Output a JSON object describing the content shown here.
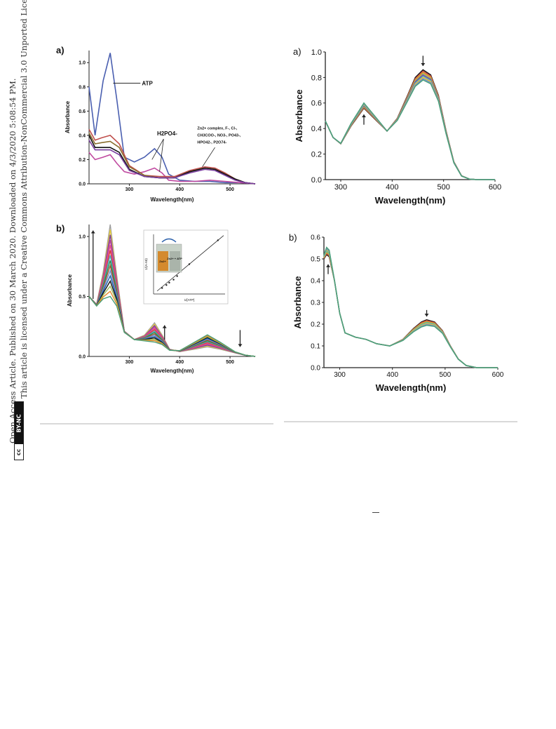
{
  "side_note": {
    "line1": "Open Access Article. Published on 30 March 2020. Downloaded on 4/3/2020 5:08:54 PM.",
    "line2": "This article is licensed under a Creative Commons Attribution-NonCommercial 3.0 Unported Licence.",
    "badge_cc": "cc",
    "badge_text": "BY-NC"
  },
  "chart_data": [
    {
      "type": "line",
      "panel_label": "a)",
      "xlabel": "Wavelength(nm)",
      "ylabel": "Absorbance",
      "xlim": [
        220,
        550
      ],
      "ylim": [
        0,
        1.1
      ],
      "xticks": [
        "300",
        "400",
        "500"
      ],
      "yticks": [
        "0.0",
        "0.2",
        "0.4",
        "0.6",
        "0.8",
        "1.0"
      ],
      "annotations": [
        "ATP",
        "H2PO4-",
        "Zn2+ complex, F-, Cl-,",
        "CH3COO-, NO3-, PO43-,",
        "HPO42-, P2O74-"
      ],
      "series": [
        {
          "color": "#4a5fb0",
          "x": [
            220,
            232,
            248,
            262,
            275,
            290,
            310,
            330,
            350,
            365,
            378,
            400,
            430,
            460,
            490,
            520,
            550
          ],
          "values": [
            0.8,
            0.4,
            0.85,
            1.08,
            0.7,
            0.22,
            0.18,
            0.22,
            0.29,
            0.22,
            0.08,
            0.03,
            0.02,
            0.02,
            0.01,
            0.01,
            0.0
          ]
        },
        {
          "color": "#c04aa0",
          "x": [
            220,
            232,
            248,
            262,
            275,
            290,
            310,
            330,
            350,
            365,
            378,
            400,
            430,
            460,
            490,
            520,
            550
          ],
          "values": [
            0.26,
            0.2,
            0.22,
            0.24,
            0.17,
            0.1,
            0.08,
            0.1,
            0.13,
            0.09,
            0.03,
            0.02,
            0.02,
            0.03,
            0.02,
            0.01,
            0.0
          ]
        },
        {
          "color": "#c0504d",
          "x": [
            220,
            232,
            245,
            262,
            280,
            300,
            330,
            360,
            390,
            420,
            450,
            470,
            490,
            510,
            530,
            550
          ],
          "values": [
            0.45,
            0.36,
            0.38,
            0.4,
            0.33,
            0.15,
            0.07,
            0.06,
            0.06,
            0.11,
            0.14,
            0.13,
            0.09,
            0.04,
            0.01,
            0.0
          ]
        },
        {
          "color": "#8a6f2f",
          "x": [
            220,
            232,
            245,
            262,
            280,
            300,
            330,
            360,
            390,
            420,
            450,
            470,
            490,
            510,
            530,
            550
          ],
          "values": [
            0.42,
            0.33,
            0.34,
            0.35,
            0.3,
            0.14,
            0.07,
            0.05,
            0.05,
            0.1,
            0.13,
            0.12,
            0.08,
            0.04,
            0.01,
            0.0
          ]
        },
        {
          "color": "#111111",
          "x": [
            220,
            232,
            245,
            262,
            280,
            300,
            330,
            360,
            390,
            420,
            450,
            470,
            490,
            510,
            530,
            550
          ],
          "values": [
            0.4,
            0.3,
            0.3,
            0.3,
            0.26,
            0.12,
            0.06,
            0.05,
            0.05,
            0.1,
            0.13,
            0.12,
            0.08,
            0.04,
            0.01,
            0.0
          ]
        },
        {
          "color": "#7a3fa0",
          "x": [
            220,
            232,
            245,
            262,
            280,
            300,
            330,
            360,
            390,
            420,
            450,
            470,
            490,
            510,
            530,
            550
          ],
          "values": [
            0.36,
            0.28,
            0.28,
            0.28,
            0.24,
            0.11,
            0.06,
            0.05,
            0.05,
            0.09,
            0.12,
            0.11,
            0.07,
            0.03,
            0.01,
            0.0
          ]
        }
      ]
    },
    {
      "type": "line",
      "panel_label": "a)",
      "xlabel": "Wavelength(nm)",
      "ylabel": "Absorbance",
      "xlim": [
        270,
        600
      ],
      "ylim": [
        0,
        1.0
      ],
      "xticks": [
        "300",
        "400",
        "500",
        "600"
      ],
      "yticks": [
        "0.0",
        "0.2",
        "0.4",
        "0.6",
        "0.8",
        "1.0"
      ],
      "arrows": [
        {
          "x": 460,
          "direction": "down"
        },
        {
          "x": 345,
          "direction": "up"
        }
      ],
      "series_colors": [
        "#111111",
        "#c0504d",
        "#e58a2a",
        "#9bbb59",
        "#7a3fa0",
        "#4bacc6",
        "#f2c12e",
        "#6e8fd0",
        "#4aa07a"
      ],
      "base_x": [
        270,
        285,
        300,
        320,
        345,
        370,
        390,
        410,
        430,
        445,
        460,
        475,
        490,
        505,
        520,
        535,
        550,
        565,
        580,
        600
      ],
      "base_values": [
        0.46,
        0.33,
        0.28,
        0.42,
        0.56,
        0.46,
        0.38,
        0.48,
        0.66,
        0.8,
        0.86,
        0.82,
        0.66,
        0.38,
        0.14,
        0.03,
        0.005,
        0.0,
        0.0,
        0.0
      ]
    },
    {
      "type": "line",
      "panel_label": "b)",
      "xlabel": "Wavelength(nm)",
      "ylabel": "Absorbance",
      "xlim": [
        220,
        550
      ],
      "ylim": [
        0,
        1.1
      ],
      "xticks": [
        "300",
        "400",
        "500"
      ],
      "yticks": [
        "0.0",
        "0.5",
        "1.0"
      ],
      "arrows": [
        {
          "x": 262,
          "direction": "up"
        },
        {
          "x": 370,
          "direction": "up"
        },
        {
          "x": 520,
          "direction": "down"
        }
      ],
      "series_colors": [
        "#9e9e9e",
        "#e8d03a",
        "#7a3fa0",
        "#c04aa0",
        "#e4508a",
        "#d93b3b",
        "#4bacc6",
        "#2f8f4f",
        "#a0522d",
        "#6e8fd0",
        "#1e5faa",
        "#111111",
        "#9bbb59",
        "#e58a2a",
        "#4aa07a"
      ],
      "inset": {
        "xlabel": "1/[ATP]",
        "ylabel": "1/(A-A0)",
        "sample_labels": [
          "Zn2+",
          "Zn2+ + ATP"
        ],
        "line_start": [
          0.05,
          0.05
        ],
        "line_end": [
          0.98,
          0.98
        ]
      }
    },
    {
      "type": "line",
      "panel_label": "b)",
      "xlabel": "Wavelength(nm)",
      "ylabel": "Absorbance",
      "xlim": [
        270,
        600
      ],
      "ylim": [
        0,
        0.6
      ],
      "xticks": [
        "300",
        "400",
        "500",
        "600"
      ],
      "yticks": [
        "0.0",
        "0.1",
        "0.2",
        "0.3",
        "0.4",
        "0.5",
        "0.6"
      ],
      "arrows": [
        {
          "x": 465,
          "direction": "down"
        },
        {
          "x": 278,
          "direction": "up"
        }
      ],
      "series_colors": [
        "#111111",
        "#c0504d",
        "#e58a2a",
        "#9bbb59",
        "#4bacc6",
        "#f2c12e",
        "#6e8fd0",
        "#4aa07a"
      ],
      "base_x": [
        270,
        275,
        280,
        290,
        300,
        310,
        330,
        350,
        370,
        395,
        420,
        440,
        455,
        465,
        480,
        495,
        510,
        525,
        540,
        560,
        580,
        600
      ],
      "base_values": [
        0.5,
        0.52,
        0.51,
        0.4,
        0.25,
        0.16,
        0.14,
        0.13,
        0.11,
        0.1,
        0.13,
        0.18,
        0.21,
        0.22,
        0.21,
        0.17,
        0.1,
        0.04,
        0.01,
        0.0,
        0.0,
        0.0
      ]
    }
  ]
}
